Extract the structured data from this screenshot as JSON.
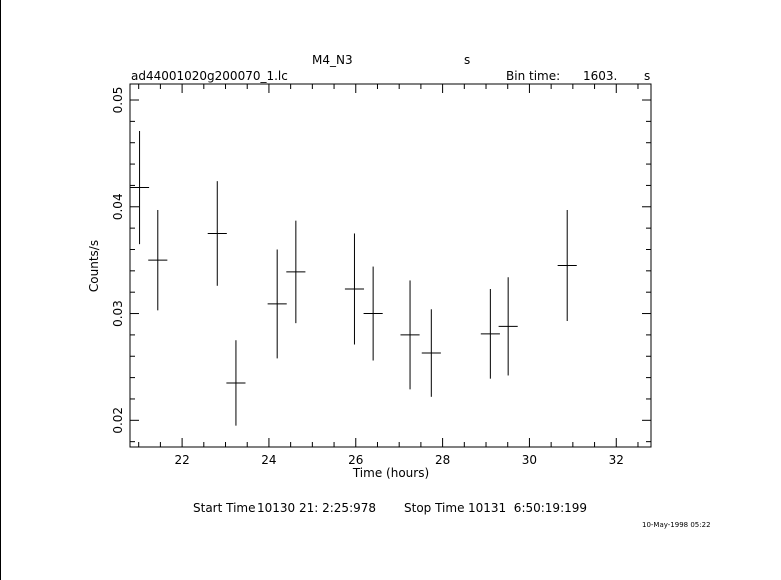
{
  "header": {
    "object_name": "M4_N3",
    "units_marker": "s",
    "file_name": "ad44001020g200070_1.lc",
    "bin_time_label": "Bin time:",
    "bin_time_value": "1603.",
    "bin_time_unit": "s"
  },
  "footer": {
    "start_label": "Start Time",
    "start_value": "10130 21: 2:25:978",
    "stop_label": "Stop Time",
    "stop_value": "10131  6:50:19:199"
  },
  "timestamp": "10-May-1998 05:22",
  "chart_data": {
    "type": "scatter",
    "title": "",
    "xlabel": "Time (hours)",
    "ylabel": "Counts/s",
    "xlim": [
      20.8,
      32.8
    ],
    "ylim": [
      0.0175,
      0.0515
    ],
    "x_ticks": [
      22,
      24,
      26,
      28,
      30,
      32
    ],
    "y_ticks": [
      0.02,
      0.03,
      0.04,
      0.05
    ],
    "x_tick_labels": [
      "22",
      "24",
      "26",
      "28",
      "30",
      "32"
    ],
    "y_tick_labels": [
      "0.02",
      "0.03",
      "0.04",
      "0.05"
    ],
    "grid": false,
    "legend": "none",
    "points": [
      {
        "x": 21.02,
        "xerr": 0.22,
        "y": 0.0418,
        "yerr": 0.0053
      },
      {
        "x": 21.44,
        "xerr": 0.22,
        "y": 0.035,
        "yerr": 0.0047
      },
      {
        "x": 22.81,
        "xerr": 0.22,
        "y": 0.0375,
        "yerr": 0.0049
      },
      {
        "x": 23.24,
        "xerr": 0.22,
        "y": 0.0235,
        "yerr": 0.004
      },
      {
        "x": 24.19,
        "xerr": 0.22,
        "y": 0.0309,
        "yerr": 0.0051
      },
      {
        "x": 24.62,
        "xerr": 0.22,
        "y": 0.0339,
        "yerr": 0.0048
      },
      {
        "x": 25.97,
        "xerr": 0.22,
        "y": 0.0323,
        "yerr": 0.0052
      },
      {
        "x": 26.4,
        "xerr": 0.22,
        "y": 0.03,
        "yerr": 0.0044
      },
      {
        "x": 27.25,
        "xerr": 0.22,
        "y": 0.028,
        "yerr": 0.0051
      },
      {
        "x": 27.74,
        "xerr": 0.22,
        "y": 0.0263,
        "yerr": 0.0041
      },
      {
        "x": 29.1,
        "xerr": 0.22,
        "y": 0.0281,
        "yerr": 0.0042
      },
      {
        "x": 29.51,
        "xerr": 0.22,
        "y": 0.0288,
        "yerr": 0.0046
      },
      {
        "x": 30.87,
        "xerr": 0.22,
        "y": 0.0345,
        "yerr": 0.0052
      }
    ]
  }
}
